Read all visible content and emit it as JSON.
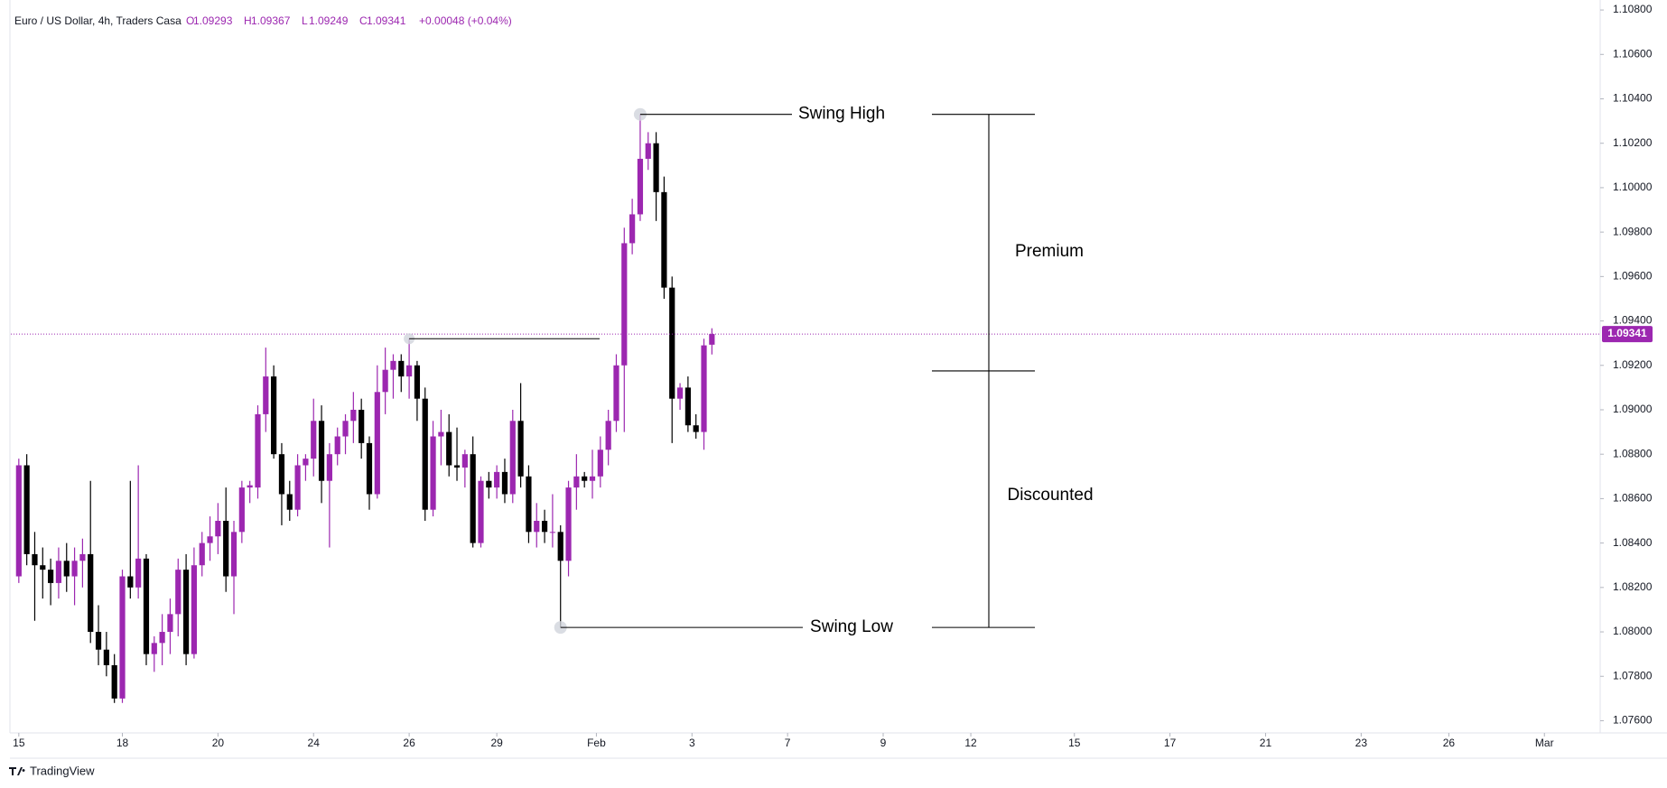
{
  "chart_data": {
    "type": "candlestick",
    "title": "Euro / US Dollar, 4h, Traders Casa",
    "ohlc_labels": [
      "O",
      "H",
      "L",
      "C"
    ],
    "change": "+0.00048 (+0.04%)",
    "brand": "TradingView",
    "up_color": "#9c27b0",
    "down_color": "#000000",
    "open": [
      1.0825,
      1.0875,
      1.0835,
      1.083,
      1.0828,
      1.0822,
      1.0832,
      1.0825,
      1.0832,
      1.0835,
      1.08,
      1.0792,
      1.0785,
      1.077,
      1.0825,
      1.082,
      1.0833,
      1.079,
      1.0795,
      1.08,
      1.0808,
      1.0828,
      1.079,
      1.083,
      1.084,
      1.0843,
      1.085,
      1.0825,
      1.0845,
      1.0865,
      1.0865,
      1.0898,
      1.0915,
      1.088,
      1.0862,
      1.0855,
      1.0875,
      1.0878,
      1.0895,
      1.0868,
      1.088,
      1.0888,
      1.0895,
      1.09,
      1.0885,
      1.0862,
      1.0908,
      1.0918,
      1.0922,
      1.0915,
      1.092,
      1.0905,
      1.0855,
      1.0888,
      1.089,
      1.0875,
      1.0874,
      1.088,
      1.084,
      1.0868,
      1.0865,
      1.0872,
      1.0862,
      1.0895,
      1.087,
      1.0845,
      1.085,
      1.0845,
      1.0845,
      1.0832,
      1.0865,
      1.087,
      1.0868,
      1.087,
      1.0882,
      1.0895,
      1.092,
      1.0975,
      1.0988,
      1.1013,
      1.102,
      1.0998,
      1.0955,
      1.0905,
      1.091,
      1.0893,
      1.089,
      1.09293
    ],
    "high": [
      1.0878,
      1.088,
      1.0845,
      1.0838,
      1.0833,
      1.0838,
      1.084,
      1.0838,
      1.0842,
      1.0868,
      1.0812,
      1.08,
      1.079,
      1.0828,
      1.0868,
      1.0875,
      1.0835,
      1.0798,
      1.0808,
      1.0815,
      1.0833,
      1.0835,
      1.0838,
      1.0845,
      1.0852,
      1.0858,
      1.0865,
      1.085,
      1.0868,
      1.0868,
      1.0902,
      1.0928,
      1.092,
      1.0885,
      1.0868,
      1.088,
      1.088,
      1.0905,
      1.0902,
      1.0885,
      1.0892,
      1.0898,
      1.0908,
      1.0905,
      1.0888,
      1.092,
      1.0928,
      1.0925,
      1.0925,
      1.0932,
      1.0922,
      1.091,
      1.0895,
      1.09,
      1.0898,
      1.0892,
      1.0882,
      1.0888,
      1.087,
      1.0872,
      1.0875,
      1.0878,
      1.09,
      1.0912,
      1.0875,
      1.0858,
      1.0855,
      1.0862,
      1.0848,
      1.0868,
      1.088,
      1.0872,
      1.0882,
      1.0888,
      1.09,
      1.0925,
      1.0982,
      1.0995,
      1.1033,
      1.1025,
      1.1025,
      1.1005,
      1.096,
      1.0912,
      1.0915,
      1.0898,
      1.0932,
      1.09367
    ],
    "low": [
      1.0822,
      1.083,
      1.0805,
      1.0815,
      1.0812,
      1.0815,
      1.0818,
      1.0812,
      1.082,
      1.0795,
      1.0785,
      1.078,
      1.0768,
      1.0768,
      1.0815,
      1.0815,
      1.0785,
      1.0782,
      1.0785,
      1.079,
      1.0798,
      1.0785,
      1.0788,
      1.0825,
      1.0832,
      1.0835,
      1.0818,
      1.0808,
      1.084,
      1.0858,
      1.086,
      1.089,
      1.0878,
      1.0848,
      1.085,
      1.0852,
      1.0868,
      1.087,
      1.0858,
      1.0838,
      1.0875,
      1.088,
      1.0885,
      1.0878,
      1.0855,
      1.086,
      1.0898,
      1.0905,
      1.0908,
      1.0905,
      1.0895,
      1.085,
      1.0852,
      1.0875,
      1.087,
      1.0868,
      1.0865,
      1.0838,
      1.0838,
      1.086,
      1.086,
      1.0858,
      1.0858,
      1.0865,
      1.084,
      1.0838,
      1.084,
      1.0838,
      1.0802,
      1.0825,
      1.0855,
      1.0865,
      1.086,
      1.0865,
      1.0875,
      1.089,
      1.089,
      1.097,
      1.0985,
      1.1008,
      1.0985,
      1.095,
      1.0885,
      1.09,
      1.089,
      1.0887,
      1.0882,
      1.09249
    ],
    "close": [
      1.0875,
      1.0835,
      1.083,
      1.0828,
      1.0822,
      1.0832,
      1.0825,
      1.0832,
      1.0835,
      1.08,
      1.0792,
      1.0785,
      1.077,
      1.0825,
      1.082,
      1.0833,
      1.079,
      1.0795,
      1.08,
      1.0808,
      1.0828,
      1.079,
      1.083,
      1.084,
      1.0843,
      1.085,
      1.0825,
      1.0845,
      1.0865,
      1.0866,
      1.0898,
      1.0915,
      1.088,
      1.0862,
      1.0855,
      1.0875,
      1.0878,
      1.0895,
      1.0868,
      1.088,
      1.0888,
      1.0895,
      1.09,
      1.0885,
      1.0862,
      1.0908,
      1.0918,
      1.0922,
      1.0915,
      1.092,
      1.0905,
      1.0855,
      1.0888,
      1.089,
      1.0875,
      1.0874,
      1.088,
      1.084,
      1.0868,
      1.0865,
      1.0872,
      1.0862,
      1.0895,
      1.087,
      1.0845,
      1.085,
      1.0845,
      1.0845,
      1.0832,
      1.0865,
      1.087,
      1.0868,
      1.087,
      1.0882,
      1.0895,
      1.092,
      1.0975,
      1.0988,
      1.1013,
      1.102,
      1.0998,
      1.0955,
      1.0905,
      1.091,
      1.0893,
      1.089,
      1.0929,
      1.09341
    ],
    "xlim": [
      -1,
      198.5
    ],
    "xticks": [
      {
        "value": 0,
        "label": "15"
      },
      {
        "value": 13,
        "label": "18"
      },
      {
        "value": 25,
        "label": "20"
      },
      {
        "value": 37,
        "label": "24"
      },
      {
        "value": 49,
        "label": "26"
      },
      {
        "value": 60,
        "label": "29"
      },
      {
        "value": 72.5,
        "label": "Feb"
      },
      {
        "value": 84.5,
        "label": "3"
      },
      {
        "value": 96.5,
        "label": "7"
      },
      {
        "value": 108.5,
        "label": "9"
      },
      {
        "value": 119.5,
        "label": "12"
      },
      {
        "value": 132.5,
        "label": "15"
      },
      {
        "value": 144.5,
        "label": "17"
      },
      {
        "value": 156.5,
        "label": "21"
      },
      {
        "value": 168.5,
        "label": "23"
      },
      {
        "value": 179.5,
        "label": "26"
      },
      {
        "value": 191.5,
        "label": "Mar"
      }
    ],
    "ylim": [
      1.07545,
      1.10845
    ],
    "yticks": [
      {
        "value": 1.076,
        "label": "1.07600"
      },
      {
        "value": 1.078,
        "label": "1.07800"
      },
      {
        "value": 1.08,
        "label": "1.08000"
      },
      {
        "value": 1.082,
        "label": "1.08200"
      },
      {
        "value": 1.084,
        "label": "1.08400"
      },
      {
        "value": 1.086,
        "label": "1.08600"
      },
      {
        "value": 1.088,
        "label": "1.08800"
      },
      {
        "value": 1.09,
        "label": "1.09000"
      },
      {
        "value": 1.092,
        "label": "1.09200"
      },
      {
        "value": 1.094,
        "label": "1.09400"
      },
      {
        "value": 1.096,
        "label": "1.09600"
      },
      {
        "value": 1.098,
        "label": "1.09800"
      },
      {
        "value": 1.1,
        "label": "1.10000"
      },
      {
        "value": 1.102,
        "label": "1.10200"
      },
      {
        "value": 1.104,
        "label": "1.10400"
      },
      {
        "value": 1.106,
        "label": "1.10600"
      },
      {
        "value": 1.108,
        "label": "1.10800"
      }
    ],
    "levels": [
      {
        "label": "Swing High",
        "value": 1.1033
      },
      {
        "label": "Swing Low",
        "value": 1.0802
      },
      {
        "value": 1.09175
      },
      {
        "value": 1.0932
      }
    ],
    "zones": [
      {
        "label": "Premium"
      },
      {
        "label": "Discounted"
      }
    ]
  }
}
